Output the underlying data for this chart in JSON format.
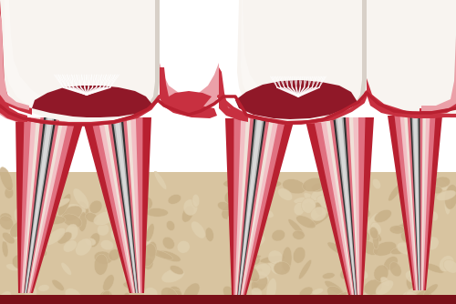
{
  "bg_color": "#ffffff",
  "bone_color": "#d8c4a0",
  "bone_spot": "#c8b088",
  "bone_spot2": "#e0d0b0",
  "gum_dark_red": "#b82030",
  "gum_red": "#c83040",
  "gum_mid": "#e07080",
  "gum_pink": "#eba0a8",
  "gum_light": "#f2c0c5",
  "enamel_white": "#f8f4f0",
  "enamel_shadow": "#e8e0d8",
  "enamel_dark": "#d8d0c8",
  "dentin_cream": "#f0e0d8",
  "pulp_dark": "#901828",
  "pulp_red": "#b02030",
  "canal_charcoal": "#303030",
  "canal_gray": "#707070",
  "canal_silver": "#b0b0b0",
  "canal_white": "#d8d8d8",
  "nerve_white": "#f0f0f0",
  "bottom_bar": "#7a1018",
  "figsize": [
    5.0,
    3.34
  ],
  "dpi": 100
}
